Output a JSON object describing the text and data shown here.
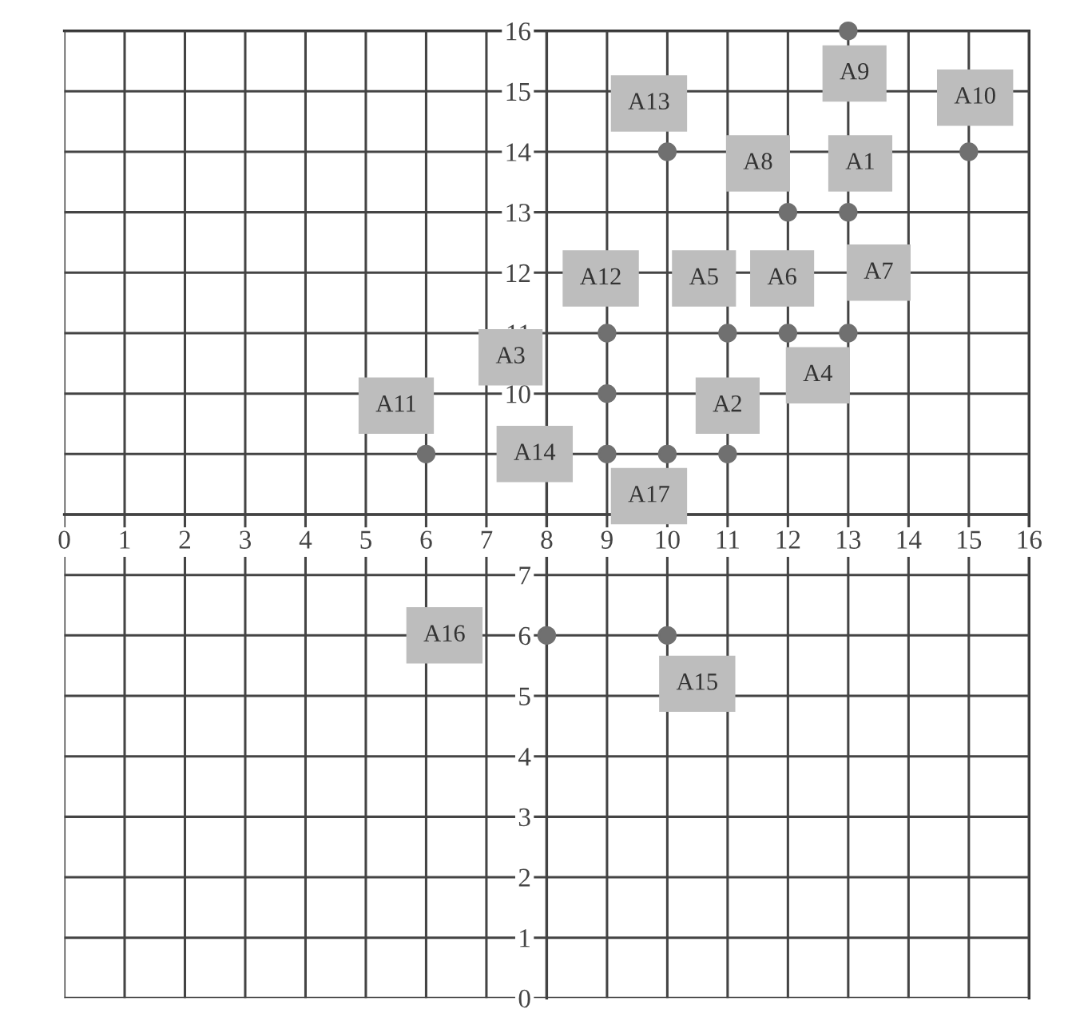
{
  "chart_data": {
    "type": "scatter",
    "series": [
      {
        "color": "#707070",
        "x": [
          13,
          15,
          10,
          12,
          13,
          9,
          11,
          12,
          13,
          9,
          6,
          9,
          10,
          11,
          8,
          10
        ],
        "values": [
          16,
          14,
          14,
          13,
          13,
          11,
          11,
          11,
          11,
          10,
          9,
          9,
          9,
          9,
          6,
          6
        ]
      }
    ],
    "marker": "circle",
    "xlim": [
      0,
      16
    ],
    "ylim": [
      0,
      16
    ],
    "xticks": [
      0,
      1,
      2,
      3,
      4,
      5,
      6,
      7,
      8,
      9,
      10,
      11,
      12,
      13,
      14,
      15,
      16
    ],
    "yticks": [
      0,
      1,
      2,
      3,
      4,
      5,
      6,
      7,
      {
        "value": 8,
        "label": null
      },
      {
        "value": 9,
        "label": null
      },
      10,
      11,
      12,
      13,
      14,
      15,
      16
    ],
    "grid": true,
    "annotations": [
      "A9",
      "A10",
      "A13",
      "A8",
      "A1",
      "A12",
      "A5",
      "A6",
      "A7",
      "A3",
      "A4",
      "A2",
      "A11",
      "A14",
      "A17",
      "A16",
      "A15"
    ]
  }
}
